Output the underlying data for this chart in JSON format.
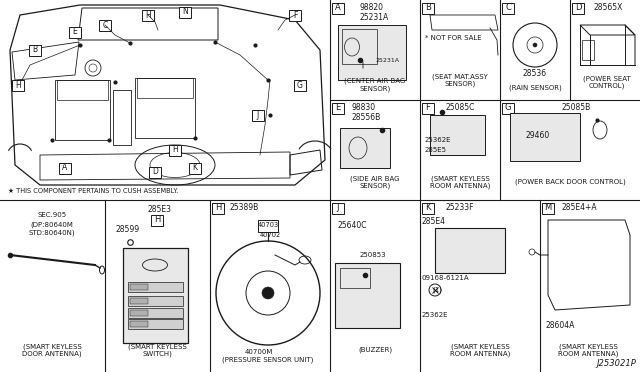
{
  "bg_color": "#f2f2f0",
  "line_color": "#333333",
  "dark_color": "#222222",
  "diagram_ref": "J253021P",
  "footnote": "★ THIS COMPONENT PERTAINS TO CUSH ASSEMBLY.",
  "sections": {
    "A": {
      "part_nos": [
        "98820",
        "25231A"
      ],
      "caption": "(CENTER AIR BAG\nSENSOR)"
    },
    "B": {
      "part_nos": [
        "* NOT FOR SALE"
      ],
      "caption": "(SEAT MAT.ASSY\nSENSOR)"
    },
    "C": {
      "part_nos": [
        "28536"
      ],
      "caption": "(RAIN SENSOR)"
    },
    "D": {
      "part_nos": [
        "28565X"
      ],
      "caption": "(POWER SEAT\nCONTROL)"
    },
    "E": {
      "part_nos": [
        "98830",
        "28556B"
      ],
      "caption": "(SIDE AIR BAG\nSENSOR)"
    },
    "F": {
      "part_nos": [
        "25085C",
        "25362E",
        "285E5"
      ],
      "caption": "(SMART KEYLESS\nROOM ANTENNA)"
    },
    "G": {
      "part_nos": [
        "25085B",
        "29460"
      ],
      "caption": "(POWER BACK DOOR CONTROL)"
    },
    "H_pressure": {
      "part_nos": [
        "25389B",
        "40703",
        "40702",
        "40700M"
      ],
      "caption": "(PRESSURE SENSOR UNIT)"
    },
    "J": {
      "part_nos": [
        "25640C",
        "250853"
      ],
      "caption": "(BUZZER)"
    },
    "K": {
      "part_nos": [
        "25233F",
        "285E4",
        "09168-6121A",
        "(1)",
        "25362E"
      ],
      "caption": "(SMART KEYLESS\nROOM ANTENNA)"
    },
    "M": {
      "part_nos": [
        "285E4+A",
        "28604A"
      ],
      "caption": "(SMART KEYLESS\nROOM ANTENNA)"
    },
    "keyless_door": {
      "part_nos": [
        "SEC.905",
        "(DP:80640M",
        "STD:80640N)"
      ],
      "caption": "(SMART KEYLESS\nDOOR ANTENNA)"
    },
    "keyless_switch": {
      "part_nos": [
        "285E3",
        "28599"
      ],
      "caption": "(SMART KEYLESS\nSWITCH)"
    }
  }
}
